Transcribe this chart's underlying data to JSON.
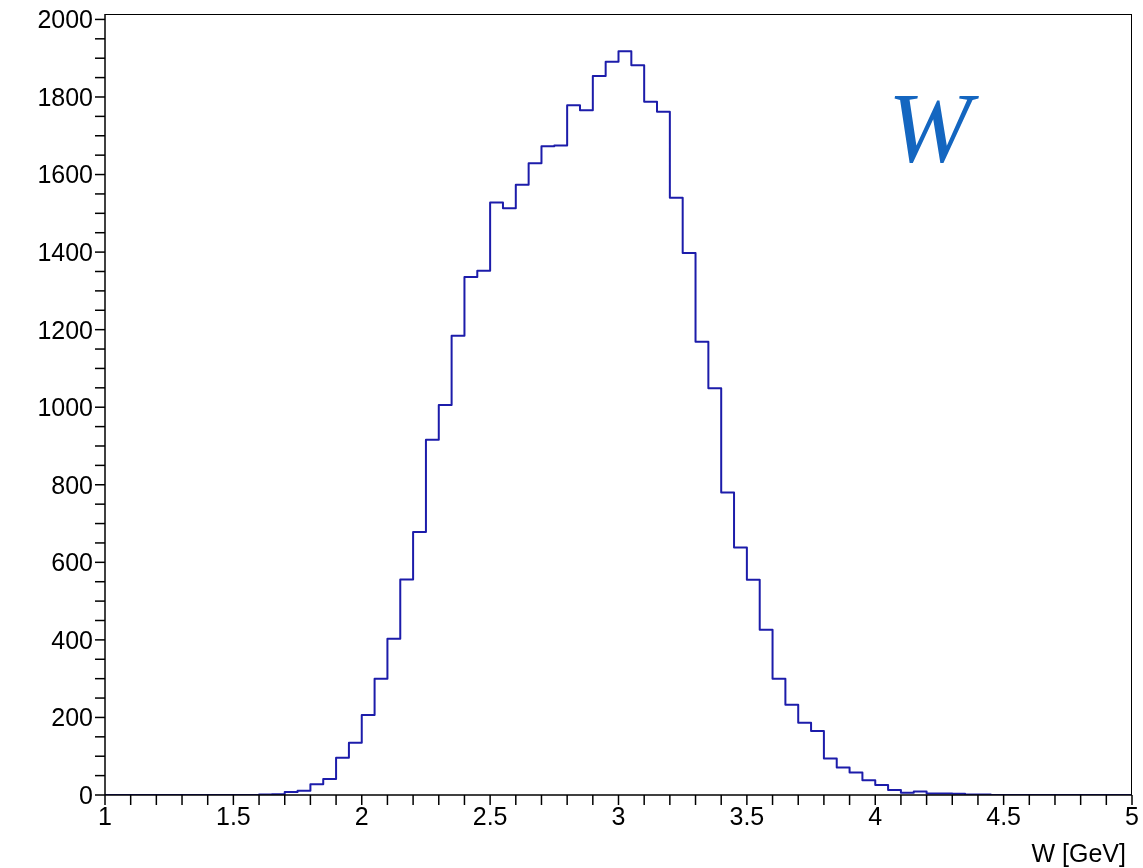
{
  "chart_data": {
    "type": "histogram",
    "xlabel": "W [GeV]",
    "annotations": [
      "W"
    ],
    "color": "#1c1caa",
    "bins": [
      1.0,
      1.05,
      1.1,
      1.15,
      1.2,
      1.25,
      1.3,
      1.35,
      1.4,
      1.45,
      1.5,
      1.55,
      1.6,
      1.65,
      1.7,
      1.75,
      1.8,
      1.85,
      1.9,
      1.95,
      2.0,
      2.05,
      2.1,
      2.15,
      2.2,
      2.25,
      2.3,
      2.35,
      2.4,
      2.45,
      2.5,
      2.55,
      2.6,
      2.65,
      2.7,
      2.75,
      2.8,
      2.85,
      2.9,
      2.95,
      3.0,
      3.05,
      3.1,
      3.15,
      3.2,
      3.25,
      3.3,
      3.35,
      3.4,
      3.45,
      3.5,
      3.55,
      3.6,
      3.65,
      3.7,
      3.75,
      3.8,
      3.85,
      3.9,
      3.95,
      4.0,
      4.05,
      4.1,
      4.15,
      4.2,
      4.25,
      4.3,
      4.35,
      4.4,
      4.45,
      4.5,
      4.55,
      4.6,
      4.65,
      4.7,
      4.75,
      4.8,
      4.85,
      4.9,
      4.95,
      5.0
    ],
    "values": [
      0,
      0,
      0,
      0,
      0,
      0,
      0,
      0,
      0,
      0,
      0,
      0,
      1,
      2,
      8,
      11,
      28,
      41,
      96,
      135,
      206,
      300,
      403,
      556,
      678,
      916,
      1006,
      1184,
      1336,
      1352,
      1528,
      1513,
      1574,
      1629,
      1673,
      1675,
      1779,
      1766,
      1854,
      1891,
      1918,
      1882,
      1788,
      1762,
      1540,
      1398,
      1169,
      1049,
      780,
      638,
      555,
      426,
      300,
      233,
      186,
      165,
      94,
      71,
      58,
      38,
      26,
      13,
      6,
      9,
      4,
      4,
      3,
      1,
      1,
      0,
      0,
      0,
      0,
      0,
      0,
      0,
      0,
      0,
      0,
      0
    ],
    "xlim": [
      1,
      5
    ],
    "xticks": [
      1,
      {
        "value": 1.1,
        "label": null
      },
      {
        "value": 1.2,
        "label": null
      },
      {
        "value": 1.3,
        "label": null
      },
      {
        "value": 1.4,
        "label": null
      },
      1.5,
      {
        "value": 1.6,
        "label": null
      },
      {
        "value": 1.7,
        "label": null
      },
      {
        "value": 1.8,
        "label": null
      },
      {
        "value": 1.9,
        "label": null
      },
      2,
      {
        "value": 2.1,
        "label": null
      },
      {
        "value": 2.2,
        "label": null
      },
      {
        "value": 2.3,
        "label": null
      },
      {
        "value": 2.4,
        "label": null
      },
      2.5,
      {
        "value": 2.6,
        "label": null
      },
      {
        "value": 2.7,
        "label": null
      },
      {
        "value": 2.8,
        "label": null
      },
      {
        "value": 2.9,
        "label": null
      },
      3,
      {
        "value": 3.1,
        "label": null
      },
      {
        "value": 3.2,
        "label": null
      },
      {
        "value": 3.3,
        "label": null
      },
      {
        "value": 3.4,
        "label": null
      },
      3.5,
      {
        "value": 3.6,
        "label": null
      },
      {
        "value": 3.7,
        "label": null
      },
      {
        "value": 3.8,
        "label": null
      },
      {
        "value": 3.9,
        "label": null
      },
      4,
      {
        "value": 4.1,
        "label": null
      },
      {
        "value": 4.2,
        "label": null
      },
      {
        "value": 4.3,
        "label": null
      },
      {
        "value": 4.4,
        "label": null
      },
      4.5,
      {
        "value": 4.6,
        "label": null
      },
      {
        "value": 4.7,
        "label": null
      },
      {
        "value": 4.8,
        "label": null
      },
      {
        "value": 4.9,
        "label": null
      },
      5
    ],
    "ylim": [
      0,
      2014
    ],
    "yticks": [
      0,
      {
        "value": 50,
        "label": null
      },
      {
        "value": 100,
        "label": null
      },
      {
        "value": 150,
        "label": null
      },
      200,
      {
        "value": 250,
        "label": null
      },
      {
        "value": 300,
        "label": null
      },
      {
        "value": 350,
        "label": null
      },
      400,
      {
        "value": 450,
        "label": null
      },
      {
        "value": 500,
        "label": null
      },
      {
        "value": 550,
        "label": null
      },
      600,
      {
        "value": 650,
        "label": null
      },
      {
        "value": 700,
        "label": null
      },
      {
        "value": 750,
        "label": null
      },
      800,
      {
        "value": 850,
        "label": null
      },
      {
        "value": 900,
        "label": null
      },
      {
        "value": 950,
        "label": null
      },
      1000,
      {
        "value": 1050,
        "label": null
      },
      {
        "value": 1100,
        "label": null
      },
      {
        "value": 1150,
        "label": null
      },
      1200,
      {
        "value": 1250,
        "label": null
      },
      {
        "value": 1300,
        "label": null
      },
      {
        "value": 1350,
        "label": null
      },
      1400,
      {
        "value": 1450,
        "label": null
      },
      {
        "value": 1500,
        "label": null
      },
      {
        "value": 1550,
        "label": null
      },
      1600,
      {
        "value": 1650,
        "label": null
      },
      {
        "value": 1700,
        "label": null
      },
      {
        "value": 1750,
        "label": null
      },
      1800,
      {
        "value": 1850,
        "label": null
      },
      {
        "value": 1900,
        "label": null
      },
      {
        "value": 1950,
        "label": null
      },
      2000
    ]
  }
}
